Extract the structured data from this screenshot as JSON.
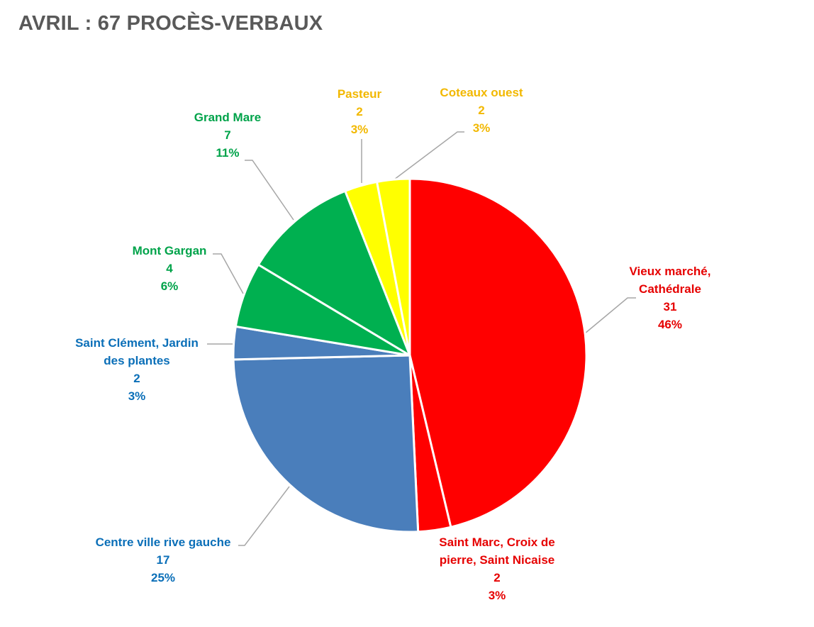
{
  "title": "AVRIL : 67 PROCÈS-VERBAUX",
  "chart_data": {
    "type": "pie",
    "title": "AVRIL : 67 PROCÈS-VERBAUX",
    "total": 67,
    "start_angle_deg": 0,
    "direction": "clockwise",
    "slices": [
      {
        "label_lines": [
          "Vieux marché,",
          "Cathédrale"
        ],
        "value": 31,
        "percent": "46%",
        "color": "#FF0000",
        "label_color": "#E60000"
      },
      {
        "label_lines": [
          "Saint Marc, Croix de",
          "pierre, Saint Nicaise"
        ],
        "value": 2,
        "percent": "3%",
        "color": "#FF0000",
        "label_color": "#E60000"
      },
      {
        "label_lines": [
          "Centre ville rive gauche"
        ],
        "value": 17,
        "percent": "25%",
        "color": "#4A7EBB",
        "label_color": "#0B6FB8"
      },
      {
        "label_lines": [
          "Saint Clément, Jardin",
          "des plantes"
        ],
        "value": 2,
        "percent": "3%",
        "color": "#4A7EBB",
        "label_color": "#0B6FB8"
      },
      {
        "label_lines": [
          "Mont Gargan"
        ],
        "value": 4,
        "percent": "6%",
        "color": "#00B050",
        "label_color": "#00A34A"
      },
      {
        "label_lines": [
          "Grand Mare"
        ],
        "value": 7,
        "percent": "11%",
        "color": "#00B050",
        "label_color": "#00A34A"
      },
      {
        "label_lines": [
          "Pasteur"
        ],
        "value": 2,
        "percent": "3%",
        "color": "#FFFF00",
        "label_color": "#F2B800"
      },
      {
        "label_lines": [
          "Coteaux ouest"
        ],
        "value": 2,
        "percent": "3%",
        "color": "#FFFF00",
        "label_color": "#F2B800"
      }
    ]
  }
}
